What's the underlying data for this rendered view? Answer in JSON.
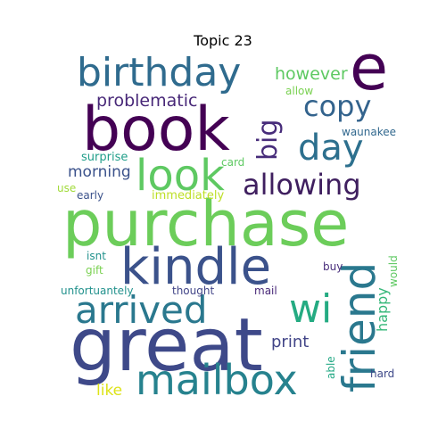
{
  "title": "Topic 23",
  "words": [
    {
      "text": "purchase",
      "color": "#6ccd5a"
    },
    {
      "text": "great",
      "color": "#3e4989"
    },
    {
      "text": "book",
      "color": "#440154"
    },
    {
      "text": "kindle",
      "color": "#3b528b"
    },
    {
      "text": "birthday",
      "color": "#2f6b8e"
    },
    {
      "text": "e",
      "color": "#440154"
    },
    {
      "text": "mailbox",
      "color": "#26828e"
    },
    {
      "text": "arrived",
      "color": "#2a788e"
    },
    {
      "text": "look",
      "color": "#5ec962"
    },
    {
      "text": "friend",
      "color": "#2a788e"
    },
    {
      "text": "wi",
      "color": "#25ab82"
    },
    {
      "text": "day",
      "color": "#2d708e"
    },
    {
      "text": "allowing",
      "color": "#3f1f5f"
    },
    {
      "text": "copy",
      "color": "#33638d"
    },
    {
      "text": "big",
      "color": "#472c7a"
    },
    {
      "text": "however",
      "color": "#5ec962"
    },
    {
      "text": "problematic",
      "color": "#482878"
    },
    {
      "text": "morning",
      "color": "#3b528b"
    },
    {
      "text": "print",
      "color": "#414487"
    },
    {
      "text": "happy",
      "color": "#35b779"
    },
    {
      "text": "like",
      "color": "#dde318"
    },
    {
      "text": "allow",
      "color": "#7ad151"
    },
    {
      "text": "waunakee",
      "color": "#31688e"
    },
    {
      "text": "surprise",
      "color": "#1f9e89"
    },
    {
      "text": "card",
      "color": "#5ec962"
    },
    {
      "text": "use",
      "color": "#a0da39"
    },
    {
      "text": "early",
      "color": "#3b528b"
    },
    {
      "text": "immediately",
      "color": "#bddf26"
    },
    {
      "text": "isnt",
      "color": "#21918c"
    },
    {
      "text": "gift",
      "color": "#7ad151"
    },
    {
      "text": "buy",
      "color": "#472c7a"
    },
    {
      "text": "would",
      "color": "#5ec962"
    },
    {
      "text": "unfortuantely",
      "color": "#21918c"
    },
    {
      "text": "thought",
      "color": "#414487"
    },
    {
      "text": "mail",
      "color": "#482878"
    },
    {
      "text": "able",
      "color": "#22a884"
    },
    {
      "text": "hard",
      "color": "#3e4989"
    }
  ]
}
